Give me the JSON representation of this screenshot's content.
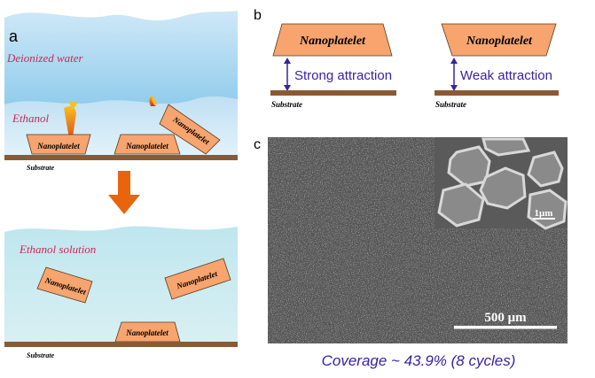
{
  "panel_a": {
    "label": "a",
    "top": {
      "water_label": "Deionized water",
      "ethanol_label": "Ethanol",
      "platelets": [
        "Nanoplatelet",
        "Nanoplatelet",
        "Nanoplatelet"
      ],
      "substrate_label": "Substrate"
    },
    "bottom": {
      "solution_label": "Ethanol solution",
      "platelets": [
        "Nanoplatelet",
        "Nanoplatelet",
        "Nanoplatelet"
      ],
      "substrate_label": "Substrate"
    }
  },
  "panel_b": {
    "label": "b",
    "left": {
      "platelet": "Nanoplatelet",
      "attraction": "Strong attraction",
      "substrate_label": "Substrate"
    },
    "right": {
      "platelet": "Nanoplatelet",
      "attraction": "Weak attraction",
      "substrate_label": "Substrate"
    }
  },
  "panel_c": {
    "label": "c",
    "scale_bar": "500 μm",
    "inset_scale_bar": "1μm",
    "caption": "Coverage ~ 43.9% (8 cycles)"
  },
  "colors": {
    "platelet": "#f7a46e",
    "substrate": "#8a5a33",
    "label_red": "#c8285a",
    "attraction_text": "#3a22a0",
    "arrow_orange": "#e8650e"
  }
}
